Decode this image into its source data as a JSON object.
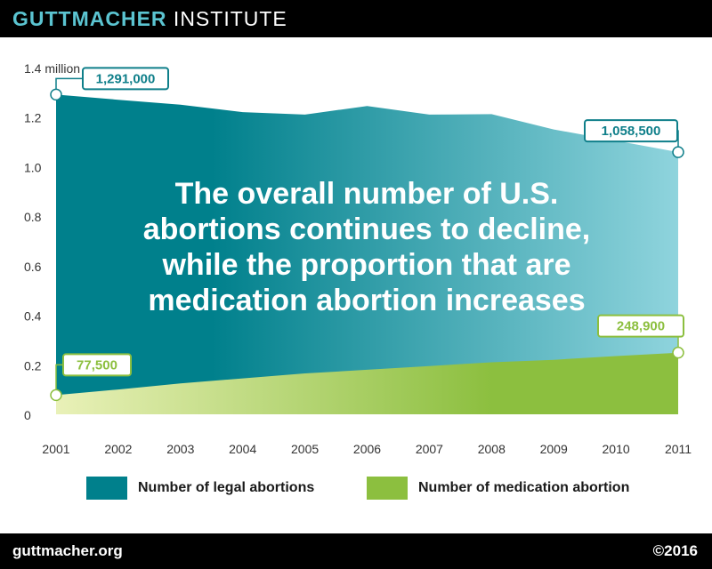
{
  "header": {
    "brand_part1": "GUTTMACHER",
    "brand_part2": " INSTITUTE"
  },
  "footer": {
    "website": "guttmacher.org",
    "copyright": "©2016"
  },
  "colors": {
    "legal_dark": "#00808c",
    "legal_light": "#8fd4dd",
    "medication_dark": "#8cbf3f",
    "medication_light": "#e9f1b8",
    "label_legal": "#0f7f8a",
    "label_medication": "#8cbf3f"
  },
  "chart_data": {
    "type": "area",
    "title": "The overall number of U.S. abortions continues to decline, while the proportion that are medication abortion increases",
    "title_lines": [
      "The overall number of U.S.",
      "abortions continues to decline,",
      "while the proportion that are",
      "medication abortion increases"
    ],
    "x": [
      2001,
      2002,
      2003,
      2004,
      2005,
      2006,
      2007,
      2008,
      2009,
      2010,
      2011
    ],
    "x_tick_labels": [
      "2001",
      "2002",
      "2003",
      "2004",
      "2005",
      "2006",
      "2007",
      "2008",
      "2009",
      "2010",
      "2011"
    ],
    "ylim": [
      0,
      1.4
    ],
    "y_ticks": [
      0,
      0.2,
      0.4,
      0.6,
      0.8,
      1.0,
      1.2,
      1.4
    ],
    "y_tick_labels": [
      "0",
      "0.2",
      "0.4",
      "0.6",
      "0.8",
      "1.0",
      "1.2",
      "1.4 million"
    ],
    "grid": false,
    "legend_position": "bottom",
    "series": [
      {
        "name": "Number of legal abortions",
        "values": [
          1.291,
          1.27,
          1.25,
          1.22,
          1.21,
          1.245,
          1.21,
          1.212,
          1.15,
          1.105,
          1.0585
        ]
      },
      {
        "name": "Number of medication abortion",
        "values": [
          0.0775,
          0.1,
          0.125,
          0.145,
          0.165,
          0.18,
          0.195,
          0.21,
          0.22,
          0.235,
          0.2489
        ]
      }
    ],
    "annotations": [
      {
        "series": 0,
        "index": 0,
        "label": "1,291,000"
      },
      {
        "series": 0,
        "index": 10,
        "label": "1,058,500"
      },
      {
        "series": 1,
        "index": 0,
        "label": "77,500"
      },
      {
        "series": 1,
        "index": 10,
        "label": "248,900"
      }
    ]
  }
}
